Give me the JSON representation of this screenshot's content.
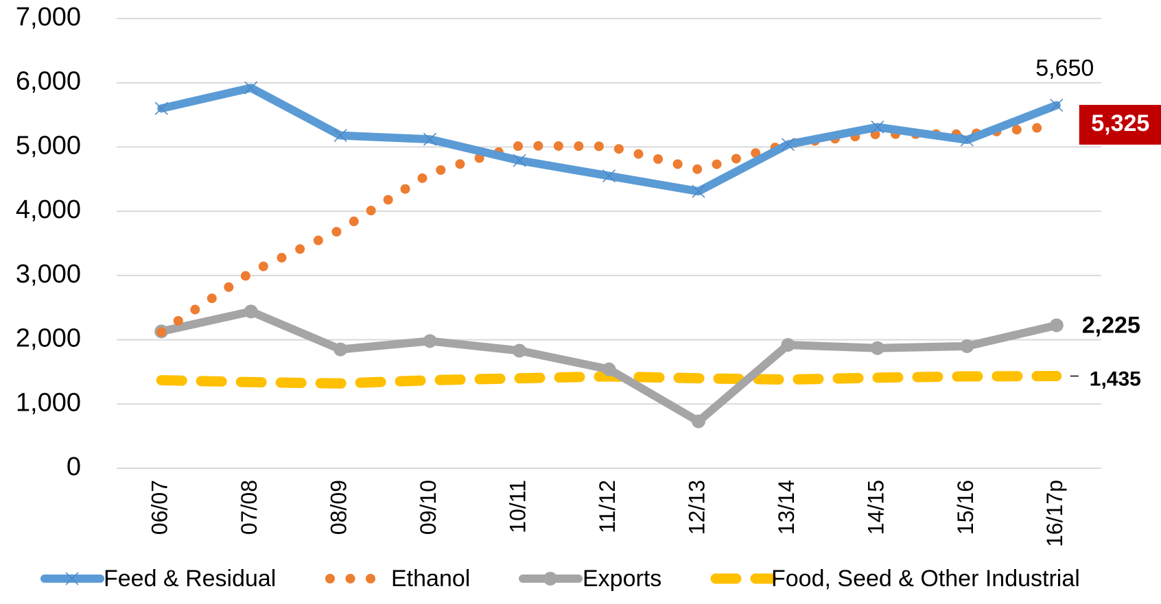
{
  "chart_data": {
    "type": "line",
    "categories": [
      "06/07",
      "07/08",
      "08/09",
      "09/10",
      "10/11",
      "11/12",
      "12/13",
      "13/14",
      "14/15",
      "15/16",
      "16/17p"
    ],
    "ylim": [
      0,
      7000
    ],
    "yticks": [
      0,
      {
        "value": 1000,
        "label": "1,000"
      },
      {
        "value": 2000,
        "label": "2,000"
      },
      {
        "value": 3000,
        "label": "3,000"
      },
      {
        "value": 4000,
        "label": "4,000"
      },
      {
        "value": 5000,
        "label": "5,000"
      },
      {
        "value": 6000,
        "label": "6,000"
      },
      {
        "value": 7000,
        "label": "7,000"
      }
    ],
    "grid": true,
    "legend": "bottom",
    "series": [
      {
        "name": "Feed & Residual",
        "color": "#5b9bd5",
        "values": [
          5600,
          5920,
          5180,
          5120,
          4790,
          4550,
          4310,
          5040,
          5310,
          5110,
          5650
        ],
        "value_labels": [
          null,
          null,
          null,
          null,
          null,
          null,
          null,
          null,
          null,
          null,
          "5,650"
        ]
      },
      {
        "name": "Ethanol",
        "color": "#ed7d31",
        "values": [
          2120,
          3050,
          3710,
          4590,
          5020,
          5010,
          4650,
          5050,
          5200,
          5200,
          5325
        ],
        "value_labels": [
          null,
          null,
          null,
          null,
          null,
          null,
          null,
          null,
          null,
          null,
          "5,325"
        ]
      },
      {
        "name": "Exports",
        "color": "#a5a5a5",
        "values": [
          2130,
          2440,
          1850,
          1980,
          1830,
          1540,
          730,
          1920,
          1870,
          1900,
          2225
        ],
        "value_labels": [
          null,
          null,
          null,
          null,
          null,
          null,
          null,
          null,
          null,
          null,
          "2,225"
        ]
      },
      {
        "name": "Food, Seed & Other Industrial",
        "color": "#ffc000",
        "values": [
          1370,
          1340,
          1320,
          1370,
          1400,
          1430,
          1400,
          1380,
          1410,
          1430,
          1435
        ],
        "value_labels": [
          null,
          null,
          null,
          null,
          null,
          null,
          null,
          null,
          null,
          null,
          "1,435"
        ]
      }
    ]
  }
}
